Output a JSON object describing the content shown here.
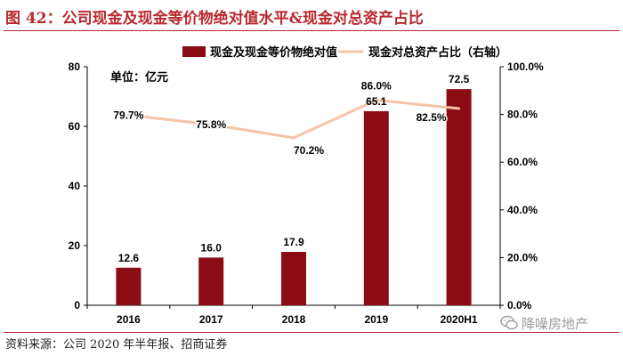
{
  "title": "图 42：公司现金及现金等价物绝对值水平&现金对总资产占比",
  "source": "资料来源：公司 2020 年半年报、招商证券",
  "watermark": {
    "text": "降噪房地产",
    "icon": "wechat-icon"
  },
  "colors": {
    "bar": "#8b0c14",
    "line": "#f5c4a7",
    "title": "#b8282e",
    "axis": "#000000",
    "text": "#000000"
  },
  "chart_data": {
    "type": "bar",
    "title": "",
    "unit_label": "单位：亿元",
    "categories": [
      "2016",
      "2017",
      "2018",
      "2019",
      "2020H1"
    ],
    "series": [
      {
        "name": "现金及现金等价物绝对值",
        "type": "bar",
        "axis": "left",
        "values": [
          12.6,
          16.0,
          17.9,
          65.1,
          72.5
        ],
        "labels": [
          "12.6",
          "16.0",
          "17.9",
          "65.1",
          "72.5"
        ]
      },
      {
        "name": "现金对总资产占比（右轴）",
        "type": "line",
        "axis": "right",
        "values": [
          79.7,
          75.8,
          70.2,
          86.0,
          82.5
        ],
        "labels": [
          "79.7%",
          "75.8%",
          "70.2%",
          "86.0%",
          "82.5%"
        ]
      }
    ],
    "y_left": {
      "min": 0,
      "max": 80,
      "ticks": [
        "0",
        "20",
        "40",
        "60",
        "80"
      ],
      "tick_values": [
        0,
        20,
        40,
        60,
        80
      ]
    },
    "y_right": {
      "min": 0,
      "max": 100,
      "ticks": [
        "0.0%",
        "20.0%",
        "40.0%",
        "60.0%",
        "80.0%",
        "100.0%"
      ],
      "tick_values": [
        0,
        20,
        40,
        60,
        80,
        100
      ]
    },
    "legend": {
      "placement": "top",
      "items": [
        "现金及现金等价物绝对值",
        "现金对总资产占比（右轴）"
      ]
    },
    "grid": false
  }
}
